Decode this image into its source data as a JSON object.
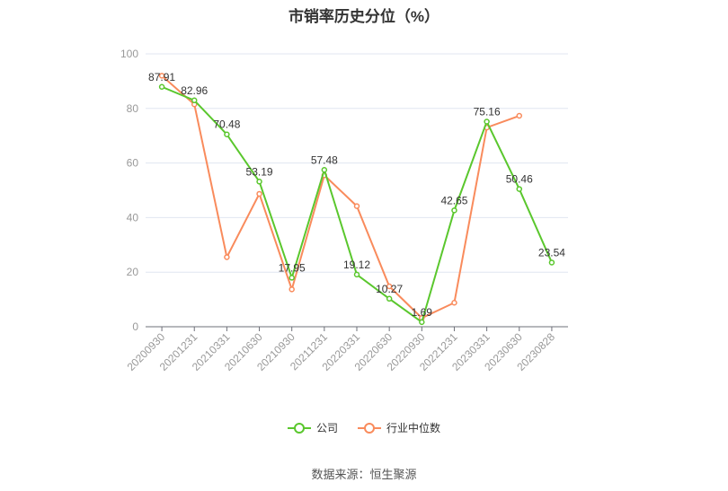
{
  "chart_data": {
    "type": "line",
    "title": "市销率历史分位（%）",
    "categories": [
      "20200930",
      "20201231",
      "20210331",
      "20210630",
      "20210930",
      "20211231",
      "20220331",
      "20220630",
      "20220930",
      "20221231",
      "20230331",
      "20230630",
      "20230828"
    ],
    "ylim": [
      0,
      100
    ],
    "yticks": [
      0,
      20,
      40,
      60,
      80,
      100
    ],
    "grid": true,
    "legend_position": "bottom",
    "series": [
      {
        "name": "公司",
        "color": "#5ac72d",
        "values": [
          87.91,
          82.96,
          70.48,
          53.19,
          17.95,
          57.48,
          19.12,
          10.27,
          1.69,
          42.65,
          75.16,
          50.46,
          23.54
        ],
        "labels": [
          "87.91",
          "82.96",
          "70.48",
          "53.19",
          "17.95",
          "57.48",
          "19.12",
          "10.27",
          "1.69",
          "42.65",
          "75.16",
          "50.46",
          "23.54"
        ]
      },
      {
        "name": "行业中位数",
        "color": "#f98b5c",
        "values": [
          92,
          81.5,
          25.5,
          48.7,
          13.7,
          55.5,
          44.2,
          14.8,
          3.2,
          8.8,
          73,
          77.3,
          null
        ]
      }
    ]
  },
  "source": "数据来源：恒生聚源"
}
